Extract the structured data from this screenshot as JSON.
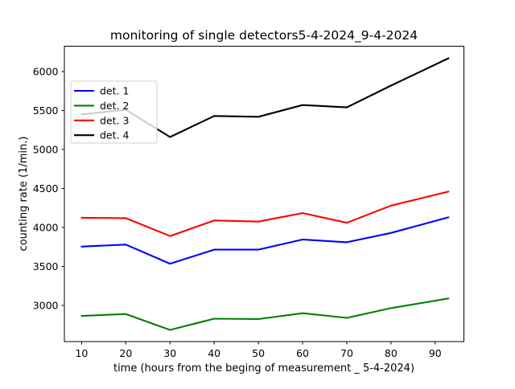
{
  "chart_data": {
    "type": "line",
    "title": "monitoring of single detectors5-4-2024_9-4-2024",
    "xlabel": "time (hours from the beging of measurement _ 5-4-2024)",
    "ylabel": "counting rate (1/min.)",
    "x": [
      10,
      20,
      30,
      40,
      50,
      60,
      70,
      80,
      93
    ],
    "series": [
      {
        "name": "det. 1",
        "color": "#0000ff",
        "values": [
          3755,
          3780,
          3535,
          3715,
          3715,
          3845,
          3810,
          3930,
          4130
        ]
      },
      {
        "name": "det. 2",
        "color": "#008000",
        "values": [
          2865,
          2890,
          2685,
          2830,
          2825,
          2900,
          2840,
          2965,
          3090
        ]
      },
      {
        "name": "det. 3",
        "color": "#ff0000",
        "values": [
          4125,
          4120,
          3890,
          4090,
          4075,
          4185,
          4060,
          4280,
          4460
        ]
      },
      {
        "name": "det. 4",
        "color": "#000000",
        "values": [
          5450,
          5510,
          5160,
          5430,
          5420,
          5570,
          5540,
          5820,
          6170
        ]
      }
    ],
    "x_ticks": [
      10,
      20,
      30,
      40,
      50,
      60,
      70,
      80,
      90
    ],
    "y_ticks": [
      3000,
      3500,
      4000,
      4500,
      5000,
      5500,
      6000
    ],
    "xlim": [
      6.1,
      96.5
    ],
    "ylim": [
      2536,
      6325
    ],
    "grid": false,
    "legend": {
      "position": "upper left",
      "frame_alpha": 0.8,
      "border_color": "#cccccc"
    },
    "colors": {
      "axes": "#000000",
      "background": "#ffffff"
    }
  }
}
